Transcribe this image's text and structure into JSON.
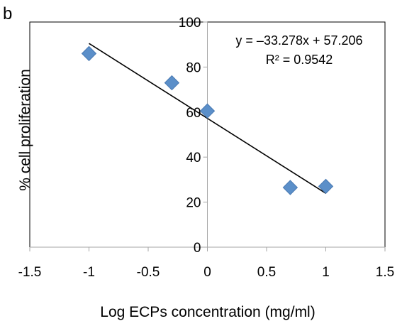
{
  "panel_label": "b",
  "chart_data": {
    "type": "scatter",
    "title": "",
    "xlabel": "Log ECPs concentration (mg/ml)",
    "ylabel": "% cell proliferation",
    "xlim": [
      -1.5,
      1.5
    ],
    "ylim": [
      0,
      100
    ],
    "x_ticks": [
      -1.5,
      -1,
      -0.5,
      0,
      0.5,
      1,
      1.5
    ],
    "x_tick_labels": [
      "-1.5",
      "-1",
      "-0.5",
      "0",
      "0.5",
      "1",
      "1.5"
    ],
    "y_ticks": [
      0,
      20,
      40,
      60,
      80,
      100
    ],
    "y_tick_labels": [
      "0",
      "20",
      "40",
      "60",
      "80",
      "100"
    ],
    "grid": false,
    "series": [
      {
        "marker": "diamond",
        "color": "#5B8FC9",
        "points": [
          {
            "x": -1,
            "y": 86
          },
          {
            "x": -0.3,
            "y": 73
          },
          {
            "x": 0,
            "y": 60.5
          },
          {
            "x": 0.7,
            "y": 26.5
          },
          {
            "x": 1,
            "y": 27
          }
        ]
      }
    ],
    "trendline": {
      "type": "linear",
      "slope": -33.278,
      "intercept": 57.206,
      "x_range": [
        -1,
        1
      ],
      "color": "#000000"
    },
    "annotations": {
      "equation": "y = –33.278x + 57.206",
      "r_squared": "R² = 0.9542"
    }
  }
}
